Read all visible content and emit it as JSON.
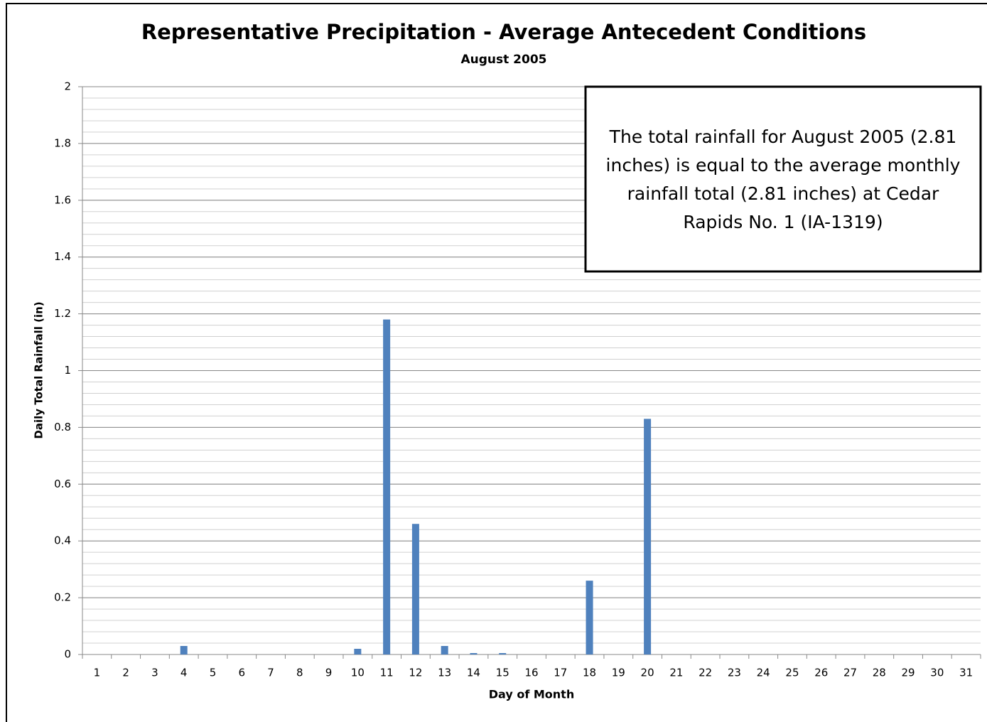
{
  "chart_data": {
    "type": "bar",
    "title": "Representative Precipitation - Average Antecedent Conditions",
    "subtitle": "August 2005",
    "x_label": "Day of Month",
    "y_label": "Daily Total Rainfall (in)",
    "annotation": [
      "The total rainfall for August 2005 (2.81",
      "inches) is equal to the average monthly",
      "rainfall total (2.81 inches) at Cedar",
      "Rapids No. 1 (IA-1319)"
    ],
    "categories": [
      1,
      2,
      3,
      4,
      5,
      6,
      7,
      8,
      9,
      10,
      11,
      12,
      13,
      14,
      15,
      16,
      17,
      18,
      19,
      20,
      21,
      22,
      23,
      24,
      25,
      26,
      27,
      28,
      29,
      30,
      31
    ],
    "values": [
      0,
      0,
      0,
      0.03,
      0,
      0,
      0,
      0,
      0,
      0.02,
      1.18,
      0.46,
      0.03,
      0.005,
      0.005,
      0,
      0,
      0.26,
      0,
      0.83,
      0,
      0,
      0,
      0,
      0,
      0,
      0,
      0,
      0,
      0,
      0
    ],
    "color": "#4f81bd",
    "ylim": [
      0,
      2
    ],
    "yticks": [
      0,
      0.2,
      0.4,
      0.6,
      0.8,
      1,
      1.2,
      1.4,
      1.6,
      1.8,
      2
    ],
    "grid": true,
    "minor_grid": 0.04
  }
}
